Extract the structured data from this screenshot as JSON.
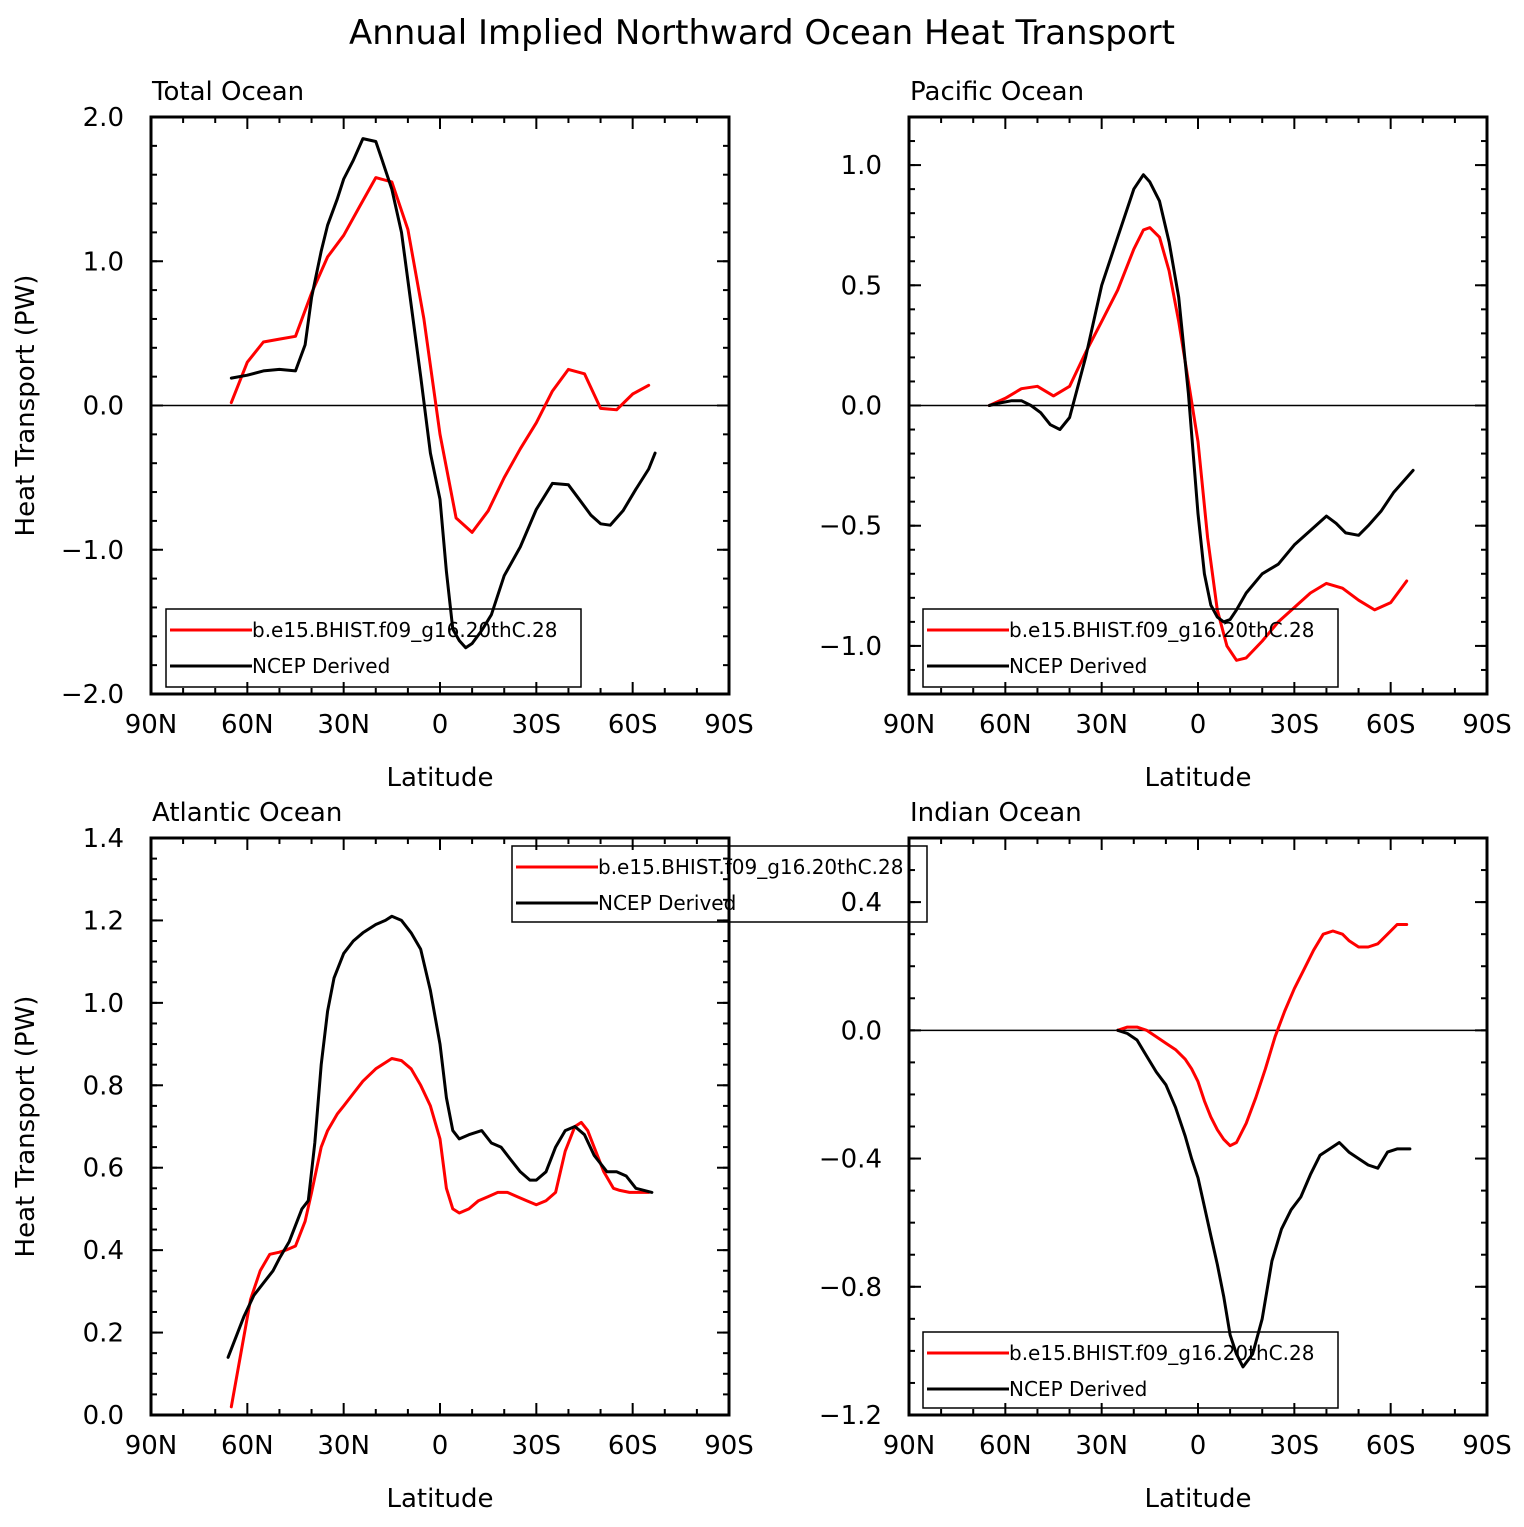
{
  "figure": {
    "title": "Annual Implied Northward Ocean Heat Transport"
  },
  "colors": {
    "model": "#ff0000",
    "obs": "#000000",
    "zero_line": "#000000"
  },
  "chart_data": [
    {
      "type": "line",
      "panel_title": "Total Ocean",
      "xlabel": "Latitude",
      "ylabel": "Heat Transport (PW)",
      "xlim": [
        90,
        -90
      ],
      "ylim": [
        -2.0,
        2.0
      ],
      "x_ticks": [
        {
          "v": 90,
          "label": "90N"
        },
        {
          "v": 60,
          "label": "60N"
        },
        {
          "v": 30,
          "label": "30N"
        },
        {
          "v": 0,
          "label": "0"
        },
        {
          "v": -30,
          "label": "30S"
        },
        {
          "v": -60,
          "label": "60S"
        },
        {
          "v": -90,
          "label": "90S"
        }
      ],
      "y_ticks": [
        {
          "v": 2.0,
          "label": "2.0"
        },
        {
          "v": 1.0,
          "label": "1.0"
        },
        {
          "v": 0.0,
          "label": "0.0"
        },
        {
          "v": -1.0,
          "label": "−1.0"
        },
        {
          "v": -2.0,
          "label": "−2.0"
        }
      ],
      "y_minor_step": 0.2,
      "zero_line": true,
      "legend_position": "bottom-left",
      "series": [
        {
          "name": "b.e15.BHIST.f09_g16.20thC.28",
          "color": "#ff0000",
          "x": [
            65,
            60,
            55,
            50,
            45,
            40,
            35,
            30,
            25,
            20,
            15,
            10,
            5,
            0,
            -5,
            -10,
            -15,
            -20,
            -25,
            -30,
            -35,
            -40,
            -45,
            -50,
            -55,
            -60,
            -65
          ],
          "y": [
            0.02,
            0.3,
            0.44,
            0.46,
            0.48,
            0.78,
            1.03,
            1.18,
            1.38,
            1.58,
            1.55,
            1.22,
            0.6,
            -0.2,
            -0.78,
            -0.88,
            -0.73,
            -0.5,
            -0.3,
            -0.12,
            0.1,
            0.25,
            0.22,
            -0.02,
            -0.03,
            0.08,
            0.14
          ]
        },
        {
          "name": "NCEP Derived",
          "color": "#000000",
          "x": [
            65,
            60,
            55,
            50,
            45,
            42,
            40,
            37,
            35,
            32,
            30,
            27,
            24,
            20,
            18,
            15,
            12,
            9,
            6,
            3,
            0,
            -2,
            -4,
            -6,
            -8,
            -10,
            -13,
            -16,
            -20,
            -25,
            -30,
            -35,
            -40,
            -43,
            -47,
            -50,
            -53,
            -57,
            -61,
            -65,
            -67
          ],
          "y": [
            0.19,
            0.21,
            0.24,
            0.25,
            0.24,
            0.42,
            0.75,
            1.07,
            1.25,
            1.43,
            1.57,
            1.7,
            1.85,
            1.83,
            1.7,
            1.5,
            1.2,
            0.7,
            0.2,
            -0.33,
            -0.65,
            -1.15,
            -1.55,
            -1.63,
            -1.68,
            -1.65,
            -1.56,
            -1.45,
            -1.18,
            -0.98,
            -0.72,
            -0.54,
            -0.55,
            -0.64,
            -0.76,
            -0.82,
            -0.83,
            -0.73,
            -0.58,
            -0.44,
            -0.33
          ]
        }
      ]
    },
    {
      "type": "line",
      "panel_title": "Pacific Ocean",
      "xlabel": "Latitude",
      "ylabel": "",
      "xlim": [
        90,
        -90
      ],
      "ylim": [
        -1.2,
        1.2
      ],
      "x_ticks": [
        {
          "v": 90,
          "label": "90N"
        },
        {
          "v": 60,
          "label": "60N"
        },
        {
          "v": 30,
          "label": "30N"
        },
        {
          "v": 0,
          "label": "0"
        },
        {
          "v": -30,
          "label": "30S"
        },
        {
          "v": -60,
          "label": "60S"
        },
        {
          "v": -90,
          "label": "90S"
        }
      ],
      "y_ticks": [
        {
          "v": 1.0,
          "label": "1.0"
        },
        {
          "v": 0.5,
          "label": "0.5"
        },
        {
          "v": 0.0,
          "label": "0.0"
        },
        {
          "v": -0.5,
          "label": "−0.5"
        },
        {
          "v": -1.0,
          "label": "−1.0"
        }
      ],
      "y_minor_step": 0.1,
      "zero_line": true,
      "legend_position": "bottom-left",
      "series": [
        {
          "name": "b.e15.BHIST.f09_g16.20thC.28",
          "color": "#ff0000",
          "x": [
            65,
            60,
            55,
            50,
            45,
            40,
            35,
            30,
            25,
            20,
            17,
            15,
            12,
            9,
            6,
            3,
            0,
            -3,
            -6,
            -9,
            -12,
            -15,
            -20,
            -25,
            -30,
            -35,
            -40,
            -45,
            -50,
            -55,
            -60,
            -65
          ],
          "y": [
            0.0,
            0.03,
            0.07,
            0.08,
            0.04,
            0.08,
            0.22,
            0.35,
            0.48,
            0.65,
            0.73,
            0.74,
            0.7,
            0.56,
            0.35,
            0.1,
            -0.15,
            -0.55,
            -0.85,
            -1.0,
            -1.06,
            -1.05,
            -0.98,
            -0.9,
            -0.84,
            -0.78,
            -0.74,
            -0.76,
            -0.81,
            -0.85,
            -0.82,
            -0.73
          ]
        },
        {
          "name": "NCEP Derived",
          "color": "#000000",
          "x": [
            65,
            62,
            58,
            55,
            52,
            49,
            46,
            43,
            40,
            37,
            35,
            30,
            25,
            20,
            17,
            15,
            12,
            9,
            6,
            3,
            0,
            -2,
            -4,
            -6,
            -8,
            -10,
            -12,
            -15,
            -20,
            -25,
            -30,
            -35,
            -40,
            -43,
            -46,
            -50,
            -53,
            -57,
            -61,
            -65,
            -67
          ],
          "y": [
            0.0,
            0.01,
            0.02,
            0.02,
            0.0,
            -0.03,
            -0.08,
            -0.1,
            -0.05,
            0.1,
            0.2,
            0.5,
            0.7,
            0.9,
            0.96,
            0.93,
            0.85,
            0.68,
            0.45,
            0.05,
            -0.45,
            -0.7,
            -0.83,
            -0.88,
            -0.9,
            -0.89,
            -0.85,
            -0.78,
            -0.7,
            -0.66,
            -0.58,
            -0.52,
            -0.46,
            -0.49,
            -0.53,
            -0.54,
            -0.5,
            -0.44,
            -0.36,
            -0.3,
            -0.27
          ]
        }
      ]
    },
    {
      "type": "line",
      "panel_title": "Atlantic Ocean",
      "xlabel": "Latitude",
      "ylabel": "Heat Transport (PW)",
      "xlim": [
        90,
        -90
      ],
      "ylim": [
        0.0,
        1.4
      ],
      "x_ticks": [
        {
          "v": 90,
          "label": "90N"
        },
        {
          "v": 60,
          "label": "60N"
        },
        {
          "v": 30,
          "label": "30N"
        },
        {
          "v": 0,
          "label": "0"
        },
        {
          "v": -30,
          "label": "30S"
        },
        {
          "v": -60,
          "label": "60S"
        },
        {
          "v": -90,
          "label": "90S"
        }
      ],
      "y_ticks": [
        {
          "v": 1.4,
          "label": "1.4"
        },
        {
          "v": 1.2,
          "label": "1.2"
        },
        {
          "v": 1.0,
          "label": "1.0"
        },
        {
          "v": 0.8,
          "label": "0.8"
        },
        {
          "v": 0.6,
          "label": "0.6"
        },
        {
          "v": 0.4,
          "label": "0.4"
        },
        {
          "v": 0.2,
          "label": "0.2"
        },
        {
          "v": 0.0,
          "label": "0.0"
        }
      ],
      "y_minor_step": 0.05,
      "zero_line": false,
      "legend_position": "top-right",
      "series": [
        {
          "name": "b.e15.BHIST.f09_g16.20thC.28",
          "color": "#ff0000",
          "x": [
            65,
            62,
            59,
            56,
            53,
            50,
            48,
            45,
            42,
            40,
            37,
            35,
            32,
            30,
            27,
            24,
            20,
            17,
            15,
            12,
            9,
            6,
            3,
            0,
            -2,
            -4,
            -6,
            -9,
            -12,
            -15,
            -18,
            -21,
            -24,
            -27,
            -30,
            -33,
            -36,
            -39,
            -42,
            -44,
            -46,
            -48,
            -51,
            -54,
            -56,
            -59,
            -62,
            -65
          ],
          "y": [
            0.02,
            0.15,
            0.28,
            0.35,
            0.39,
            0.395,
            0.4,
            0.41,
            0.47,
            0.54,
            0.65,
            0.69,
            0.73,
            0.75,
            0.78,
            0.81,
            0.84,
            0.855,
            0.865,
            0.86,
            0.84,
            0.8,
            0.75,
            0.67,
            0.55,
            0.5,
            0.49,
            0.5,
            0.52,
            0.53,
            0.54,
            0.54,
            0.53,
            0.52,
            0.51,
            0.52,
            0.54,
            0.64,
            0.7,
            0.71,
            0.69,
            0.65,
            0.59,
            0.55,
            0.545,
            0.54,
            0.54,
            0.54
          ]
        },
        {
          "name": "NCEP Derived",
          "color": "#000000",
          "x": [
            66,
            64,
            61,
            58,
            55,
            52,
            50,
            47,
            45,
            43,
            41,
            39,
            37,
            35,
            33,
            30,
            27,
            24,
            20,
            17,
            15,
            12,
            9,
            6,
            3,
            0,
            -2,
            -4,
            -6,
            -9,
            -13,
            -16,
            -19,
            -22,
            -25,
            -28,
            -30,
            -33,
            -36,
            -39,
            -42,
            -45,
            -48,
            -52,
            -55,
            -58,
            -61,
            -66
          ],
          "y": [
            0.14,
            0.18,
            0.24,
            0.29,
            0.32,
            0.35,
            0.38,
            0.42,
            0.46,
            0.5,
            0.52,
            0.66,
            0.85,
            0.98,
            1.06,
            1.12,
            1.15,
            1.17,
            1.19,
            1.2,
            1.21,
            1.2,
            1.17,
            1.13,
            1.03,
            0.9,
            0.77,
            0.69,
            0.67,
            0.68,
            0.69,
            0.66,
            0.65,
            0.62,
            0.59,
            0.57,
            0.57,
            0.59,
            0.65,
            0.69,
            0.7,
            0.68,
            0.63,
            0.59,
            0.59,
            0.58,
            0.55,
            0.54
          ]
        }
      ]
    },
    {
      "type": "line",
      "panel_title": "Indian Ocean",
      "xlabel": "Latitude",
      "ylabel": "",
      "xlim": [
        90,
        -90
      ],
      "ylim": [
        -1.2,
        0.6
      ],
      "x_ticks": [
        {
          "v": 90,
          "label": "90N"
        },
        {
          "v": 60,
          "label": "60N"
        },
        {
          "v": 30,
          "label": "30N"
        },
        {
          "v": 0,
          "label": "0"
        },
        {
          "v": -30,
          "label": "30S"
        },
        {
          "v": -60,
          "label": "60S"
        },
        {
          "v": -90,
          "label": "90S"
        }
      ],
      "y_ticks": [
        {
          "v": 0.4,
          "label": "0.4"
        },
        {
          "v": 0.0,
          "label": "0.0"
        },
        {
          "v": -0.4,
          "label": "−0.4"
        },
        {
          "v": -0.8,
          "label": "−0.8"
        },
        {
          "v": -1.2,
          "label": "−1.2"
        }
      ],
      "y_minor_step": 0.1,
      "zero_line": true,
      "legend_position": "bottom-left",
      "series": [
        {
          "name": "b.e15.BHIST.f09_g16.20thC.28",
          "color": "#ff0000",
          "x": [
            25,
            22,
            19,
            16,
            13,
            10,
            7,
            4,
            2,
            0,
            -2,
            -4,
            -6,
            -8,
            -10,
            -12,
            -15,
            -18,
            -21,
            -24,
            -27,
            -30,
            -33,
            -36,
            -39,
            -42,
            -45,
            -47,
            -50,
            -53,
            -56,
            -59,
            -62,
            -65
          ],
          "y": [
            0.0,
            0.01,
            0.01,
            0.0,
            -0.02,
            -0.04,
            -0.06,
            -0.09,
            -0.12,
            -0.16,
            -0.22,
            -0.27,
            -0.31,
            -0.34,
            -0.36,
            -0.35,
            -0.29,
            -0.21,
            -0.12,
            -0.02,
            0.06,
            0.13,
            0.19,
            0.25,
            0.3,
            0.31,
            0.3,
            0.28,
            0.26,
            0.26,
            0.27,
            0.3,
            0.33,
            0.33
          ]
        },
        {
          "name": "NCEP Derived",
          "color": "#000000",
          "x": [
            25,
            22,
            19,
            16,
            13,
            10,
            7,
            4,
            2,
            0,
            -2,
            -4,
            -6,
            -8,
            -10,
            -12,
            -14,
            -17,
            -20,
            -23,
            -26,
            -29,
            -32,
            -35,
            -38,
            -41,
            -44,
            -47,
            -50,
            -53,
            -56,
            -59,
            -62,
            -66
          ],
          "y": [
            0.0,
            -0.01,
            -0.03,
            -0.08,
            -0.13,
            -0.17,
            -0.24,
            -0.33,
            -0.4,
            -0.46,
            -0.55,
            -0.64,
            -0.73,
            -0.83,
            -0.95,
            -1.01,
            -1.05,
            -1.01,
            -0.9,
            -0.72,
            -0.62,
            -0.56,
            -0.52,
            -0.45,
            -0.39,
            -0.37,
            -0.35,
            -0.38,
            -0.4,
            -0.42,
            -0.43,
            -0.38,
            -0.37,
            -0.37
          ]
        }
      ]
    }
  ]
}
